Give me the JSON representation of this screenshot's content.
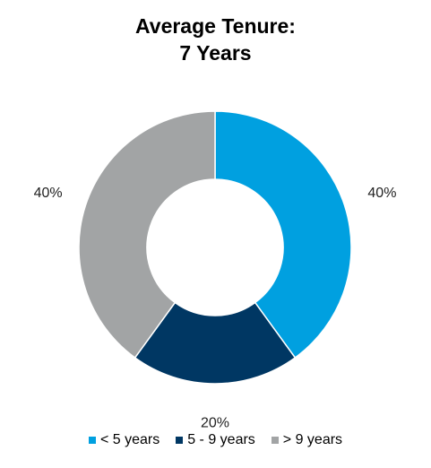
{
  "chart_data": {
    "type": "pie",
    "title": [
      "Average Tenure:",
      "7 Years"
    ],
    "categories": [
      "< 5 years",
      "5 - 9 years",
      "> 9 years"
    ],
    "values": [
      40,
      20,
      40
    ],
    "value_labels": [
      "40%",
      "20%",
      "40%"
    ],
    "colors": [
      "#00a0e0",
      "#003763",
      "#a2a4a5"
    ],
    "legend_position": "bottom",
    "donut": true
  }
}
